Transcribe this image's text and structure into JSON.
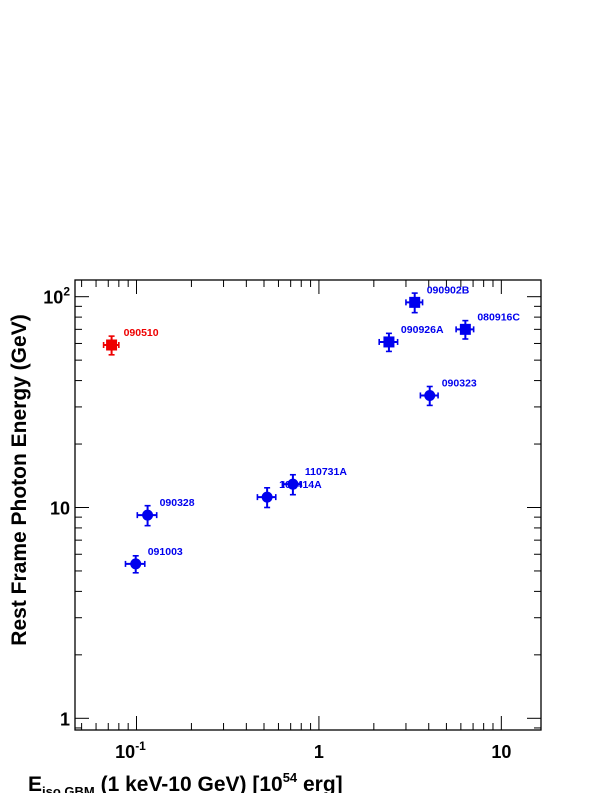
{
  "chart_data": {
    "type": "scatter",
    "title": "",
    "xlabel": {
      "main": "E",
      "sub": "iso,GBM",
      "rest": " (1 keV-10 GeV) [10",
      "sup": "54",
      "end": " erg]"
    },
    "ylabel": "Rest Frame Photon Energy (GeV)",
    "xscale": "log",
    "yscale": "log",
    "xlim": [
      0.046,
      16.5
    ],
    "ylim": [
      0.88,
      120
    ],
    "grid": false,
    "xtick_labels": [
      {
        "value": 0.1,
        "base": "10",
        "exp": "-1"
      },
      {
        "value": 1,
        "base": "1",
        "exp": ""
      },
      {
        "value": 10,
        "base": "10",
        "exp": ""
      }
    ],
    "ytick_labels": [
      {
        "value": 1,
        "base": "1",
        "exp": ""
      },
      {
        "value": 10,
        "base": "10",
        "exp": ""
      },
      {
        "value": 100,
        "base": "10",
        "exp": "2"
      }
    ],
    "colors": {
      "blue": "#0000ee",
      "red": "#ee0000"
    },
    "points": [
      {
        "label": "090510",
        "x": 0.073,
        "y": 59,
        "xerr": [
          0.007,
          0.007
        ],
        "yerr": [
          6,
          6
        ],
        "marker": "square",
        "color": "red"
      },
      {
        "label": "090328",
        "x": 0.115,
        "y": 9.2,
        "xerr": [
          0.014,
          0.014
        ],
        "yerr": [
          1.0,
          1.0
        ],
        "marker": "circle",
        "color": "blue"
      },
      {
        "label": "091003",
        "x": 0.099,
        "y": 5.4,
        "xerr": [
          0.012,
          0.012
        ],
        "yerr": [
          0.5,
          0.5
        ],
        "marker": "circle",
        "color": "blue"
      },
      {
        "label": "100414A",
        "x": 0.52,
        "y": 11.2,
        "xerr": [
          0.06,
          0.06
        ],
        "yerr": [
          1.2,
          1.2
        ],
        "marker": "circle",
        "color": "blue"
      },
      {
        "label": "110731A",
        "x": 0.72,
        "y": 12.9,
        "xerr": [
          0.08,
          0.08
        ],
        "yerr": [
          1.4,
          1.4
        ],
        "marker": "circle",
        "color": "blue"
      },
      {
        "label": "090926A",
        "x": 2.42,
        "y": 61,
        "xerr": [
          0.28,
          0.28
        ],
        "yerr": [
          6,
          6
        ],
        "marker": "square",
        "color": "blue"
      },
      {
        "label": "090902B",
        "x": 3.35,
        "y": 94,
        "xerr": [
          0.35,
          0.35
        ],
        "yerr": [
          10,
          10
        ],
        "marker": "square",
        "color": "blue"
      },
      {
        "label": "090323",
        "x": 4.05,
        "y": 34,
        "xerr": [
          0.45,
          0.45
        ],
        "yerr": [
          3.5,
          3.5
        ],
        "marker": "circle",
        "color": "blue"
      },
      {
        "label": "080916C",
        "x": 6.35,
        "y": 70,
        "xerr": [
          0.7,
          0.7
        ],
        "yerr": [
          7,
          7
        ],
        "marker": "square",
        "color": "blue"
      }
    ]
  }
}
